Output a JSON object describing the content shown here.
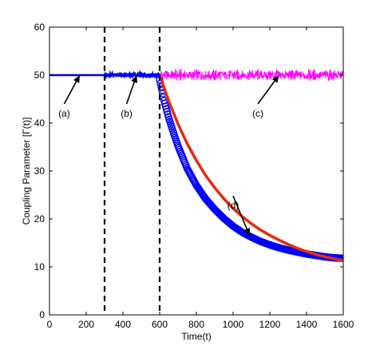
{
  "chart_data": {
    "type": "line",
    "xlabel": "Time(t)",
    "ylabel": "Coupling Parameter [Γ(t)]",
    "xlim": [
      0,
      1600
    ],
    "ylim": [
      0,
      60
    ],
    "xticks": [
      0,
      200,
      400,
      600,
      800,
      1000,
      1200,
      1400,
      1600
    ],
    "yticks": [
      0,
      10,
      20,
      30,
      40,
      50,
      60
    ],
    "grid": false,
    "legend": "none",
    "vlines": [
      300,
      600
    ],
    "series": [
      {
        "style": "solid-line",
        "color": "#0000ff",
        "x": [
          0,
          50,
          100,
          150,
          200,
          250,
          300
        ],
        "y": [
          50,
          50,
          50,
          50,
          50,
          50,
          50
        ]
      },
      {
        "style": "line-with-markers",
        "color": "#0000ff",
        "x": [
          300,
          350,
          400,
          450,
          500,
          550,
          600
        ],
        "y": [
          50,
          50.1,
          49.9,
          50.2,
          49.8,
          50.1,
          50
        ]
      },
      {
        "style": "noisy-line",
        "color": "#ff00ff",
        "x": [
          600,
          650,
          700,
          750,
          800,
          850,
          900,
          950,
          1000,
          1050,
          1100,
          1150,
          1200,
          1250,
          1300,
          1350,
          1400,
          1450,
          1500,
          1550,
          1600
        ],
        "y": [
          50,
          50.6,
          49.4,
          50.5,
          49.6,
          50.4,
          49.5,
          50.7,
          49.4,
          50.5,
          49.6,
          50.6,
          49.5,
          50.4,
          49.5,
          50.7,
          49.4,
          50.5,
          49.6,
          50.4,
          50
        ]
      },
      {
        "style": "circle-markers",
        "color": "#0000ff",
        "x": [
          600,
          625,
          650,
          675,
          700,
          750,
          800,
          850,
          900,
          950,
          1000,
          1050,
          1100,
          1150,
          1200,
          1250,
          1300,
          1350,
          1400,
          1450,
          1500,
          1550,
          1600
        ],
        "y": [
          49,
          44.5,
          41,
          38,
          35.2,
          30.5,
          27,
          24.2,
          22,
          20.1,
          18.5,
          17.2,
          16.2,
          15.3,
          14.6,
          14,
          13.5,
          13.1,
          12.7,
          12.4,
          12.1,
          11.9,
          11.8
        ]
      },
      {
        "style": "thick-line",
        "color": "#e03010",
        "x": [
          600,
          650,
          700,
          750,
          800,
          850,
          900,
          950,
          1000,
          1050,
          1100,
          1150,
          1200,
          1250,
          1300,
          1350,
          1400,
          1450,
          1500,
          1550,
          1600
        ],
        "y": [
          50,
          44.5,
          39.8,
          35.7,
          32.2,
          29.1,
          26.5,
          24.2,
          22.2,
          20.5,
          19,
          17.7,
          16.6,
          15.6,
          14.7,
          13.9,
          13.2,
          12.6,
          12.1,
          11.7,
          11.3
        ]
      }
    ],
    "annotations": [
      {
        "text": "(a)",
        "label_at": [
          80,
          42
        ],
        "arrow_to": [
          165,
          50
        ]
      },
      {
        "text": "(b)",
        "label_at": [
          420,
          42
        ],
        "arrow_to": [
          475,
          50
        ]
      },
      {
        "text": "(c)",
        "label_at": [
          1135,
          42
        ],
        "arrow_to": [
          1250,
          50
        ]
      },
      {
        "text": "(d)",
        "label_at": [
          1000,
          22.8
        ],
        "arrow_to": [
          1090,
          16.5
        ]
      }
    ]
  }
}
